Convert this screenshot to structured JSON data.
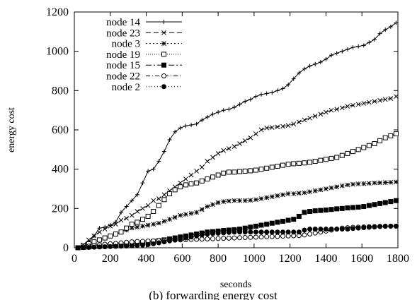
{
  "caption": "(b) forwarding energy cost",
  "chart_data": {
    "type": "line",
    "xlabel": "seconds",
    "ylabel": "energy cost",
    "xlim": [
      0,
      1800
    ],
    "ylim": [
      0,
      1200
    ],
    "xticks": [
      0,
      200,
      400,
      600,
      800,
      1000,
      1200,
      1400,
      1600,
      1800
    ],
    "yticks": [
      0,
      200,
      400,
      600,
      800,
      1000,
      1200
    ],
    "grid": false,
    "legend_position": "top-left",
    "series": [
      {
        "name": "node 14",
        "marker": "plus",
        "dash": "",
        "x": [
          20,
          50,
          80,
          110,
          140,
          170,
          200,
          230,
          260,
          290,
          320,
          350,
          380,
          410,
          440,
          470,
          500,
          530,
          560,
          590,
          620,
          650,
          680,
          710,
          740,
          770,
          800,
          830,
          860,
          890,
          920,
          950,
          980,
          1010,
          1040,
          1070,
          1100,
          1130,
          1160,
          1190,
          1220,
          1250,
          1280,
          1310,
          1340,
          1370,
          1400,
          1430,
          1460,
          1490,
          1520,
          1550,
          1580,
          1610,
          1640,
          1670,
          1700,
          1730,
          1760,
          1790
        ],
        "y": [
          0,
          10,
          30,
          60,
          100,
          105,
          115,
          130,
          180,
          210,
          240,
          270,
          330,
          390,
          400,
          440,
          490,
          550,
          590,
          610,
          620,
          625,
          630,
          650,
          665,
          680,
          690,
          700,
          705,
          715,
          730,
          745,
          755,
          770,
          780,
          785,
          790,
          800,
          810,
          830,
          860,
          890,
          910,
          925,
          935,
          945,
          960,
          980,
          990,
          1000,
          1010,
          1020,
          1025,
          1030,
          1045,
          1060,
          1090,
          1110,
          1125,
          1145
        ]
      },
      {
        "name": "node 23",
        "marker": "x",
        "dash": "7,4",
        "x": [
          20,
          50,
          80,
          110,
          140,
          170,
          200,
          230,
          260,
          290,
          320,
          350,
          380,
          410,
          440,
          470,
          500,
          530,
          560,
          590,
          620,
          650,
          680,
          710,
          740,
          770,
          800,
          830,
          860,
          890,
          920,
          950,
          980,
          1010,
          1040,
          1070,
          1100,
          1130,
          1160,
          1190,
          1220,
          1250,
          1280,
          1310,
          1340,
          1370,
          1400,
          1430,
          1460,
          1490,
          1520,
          1550,
          1580,
          1610,
          1640,
          1670,
          1700,
          1730,
          1760,
          1790
        ],
        "y": [
          0,
          15,
          40,
          60,
          80,
          95,
          110,
          120,
          140,
          150,
          165,
          185,
          200,
          215,
          240,
          250,
          270,
          290,
          310,
          330,
          350,
          370,
          390,
          410,
          440,
          460,
          480,
          495,
          505,
          515,
          530,
          545,
          560,
          580,
          600,
          610,
          612,
          615,
          618,
          622,
          630,
          640,
          650,
          660,
          670,
          680,
          690,
          700,
          705,
          712,
          720,
          725,
          730,
          735,
          740,
          745,
          750,
          755,
          760,
          770
        ]
      },
      {
        "name": "node 3",
        "marker": "star",
        "dash": "2,3",
        "x": [
          20,
          50,
          80,
          110,
          140,
          170,
          200,
          230,
          260,
          290,
          320,
          350,
          380,
          410,
          440,
          470,
          500,
          530,
          560,
          590,
          620,
          650,
          680,
          710,
          740,
          770,
          800,
          830,
          860,
          890,
          920,
          950,
          980,
          1010,
          1040,
          1070,
          1100,
          1130,
          1160,
          1190,
          1220,
          1250,
          1280,
          1310,
          1340,
          1370,
          1400,
          1430,
          1460,
          1490,
          1520,
          1550,
          1580,
          1610,
          1640,
          1670,
          1700,
          1730,
          1760,
          1790
        ],
        "y": [
          0,
          10,
          20,
          30,
          40,
          50,
          60,
          70,
          80,
          90,
          100,
          105,
          110,
          115,
          120,
          125,
          135,
          145,
          155,
          165,
          170,
          175,
          180,
          195,
          210,
          220,
          230,
          235,
          238,
          240,
          240,
          240,
          242,
          245,
          250,
          255,
          260,
          265,
          270,
          275,
          275,
          278,
          280,
          285,
          290,
          295,
          300,
          305,
          310,
          315,
          320,
          323,
          325,
          326,
          328,
          330,
          331,
          332,
          333,
          335
        ]
      },
      {
        "name": "node 19",
        "marker": "square",
        "dash": "1,2",
        "x": [
          20,
          50,
          80,
          110,
          140,
          170,
          200,
          230,
          260,
          290,
          320,
          350,
          380,
          410,
          440,
          470,
          500,
          530,
          560,
          590,
          620,
          650,
          680,
          710,
          740,
          770,
          800,
          830,
          860,
          890,
          920,
          950,
          980,
          1010,
          1040,
          1070,
          1100,
          1130,
          1160,
          1190,
          1220,
          1250,
          1280,
          1310,
          1340,
          1370,
          1400,
          1430,
          1460,
          1490,
          1520,
          1550,
          1580,
          1610,
          1640,
          1670,
          1700,
          1730,
          1760,
          1790
        ],
        "y": [
          0,
          10,
          20,
          30,
          40,
          50,
          60,
          70,
          80,
          100,
          120,
          130,
          145,
          160,
          185,
          215,
          245,
          275,
          295,
          310,
          320,
          325,
          330,
          340,
          350,
          360,
          370,
          380,
          385,
          385,
          388,
          390,
          392,
          395,
          400,
          405,
          410,
          415,
          420,
          425,
          428,
          430,
          432,
          435,
          440,
          445,
          450,
          455,
          460,
          470,
          480,
          490,
          500,
          510,
          520,
          530,
          545,
          560,
          570,
          580
        ]
      },
      {
        "name": "node 15",
        "marker": "filled-square",
        "dash": "8,3,2,3",
        "x": [
          20,
          50,
          80,
          110,
          140,
          170,
          200,
          230,
          260,
          290,
          320,
          350,
          380,
          410,
          440,
          470,
          500,
          530,
          560,
          590,
          620,
          650,
          680,
          710,
          740,
          770,
          800,
          830,
          860,
          890,
          920,
          950,
          980,
          1010,
          1040,
          1070,
          1100,
          1130,
          1160,
          1190,
          1220,
          1250,
          1280,
          1310,
          1340,
          1370,
          1400,
          1430,
          1460,
          1490,
          1520,
          1550,
          1580,
          1610,
          1640,
          1670,
          1700,
          1730,
          1760,
          1790
        ],
        "y": [
          0,
          2,
          4,
          6,
          8,
          10,
          12,
          14,
          16,
          18,
          20,
          22,
          25,
          28,
          32,
          36,
          40,
          45,
          50,
          55,
          60,
          65,
          70,
          75,
          80,
          82,
          85,
          88,
          90,
          92,
          95,
          100,
          105,
          110,
          115,
          120,
          125,
          130,
          135,
          140,
          145,
          160,
          180,
          185,
          188,
          190,
          192,
          195,
          198,
          200,
          203,
          205,
          207,
          210,
          215,
          220,
          225,
          230,
          235,
          240
        ]
      },
      {
        "name": "node 22",
        "marker": "circle",
        "dash": "6,3,1,3",
        "x": [
          20,
          50,
          80,
          110,
          140,
          170,
          200,
          230,
          260,
          290,
          320,
          350,
          380,
          410,
          440,
          470,
          500,
          530,
          560,
          590,
          620,
          650,
          680,
          710,
          740,
          770,
          800,
          830,
          860,
          890,
          920,
          950,
          980,
          1010,
          1040,
          1070,
          1100,
          1130,
          1160,
          1190,
          1220,
          1250,
          1280,
          1310,
          1340,
          1370,
          1400,
          1430,
          1460,
          1490,
          1520,
          1550,
          1580,
          1610,
          1640,
          1670,
          1700,
          1730,
          1760,
          1790
        ],
        "y": [
          0,
          5,
          8,
          12,
          15,
          18,
          20,
          22,
          25,
          28,
          30,
          32,
          33,
          34,
          35,
          36,
          37,
          38,
          39,
          40,
          41,
          42,
          43,
          44,
          45,
          46,
          47,
          48,
          49,
          50,
          51,
          52,
          53,
          54,
          55,
          56,
          57,
          58,
          59,
          60,
          61,
          62,
          65,
          70,
          75,
          80,
          85,
          90,
          95,
          100,
          102,
          104,
          105,
          106,
          107,
          108,
          109,
          110,
          110,
          110
        ]
      },
      {
        "name": "node 2",
        "marker": "filled-circle",
        "dash": "1,3",
        "x": [
          20,
          50,
          80,
          110,
          140,
          170,
          200,
          230,
          260,
          290,
          320,
          350,
          380,
          410,
          440,
          470,
          500,
          530,
          560,
          590,
          620,
          650,
          680,
          710,
          740,
          770,
          800,
          830,
          860,
          890,
          920,
          950,
          980,
          1010,
          1040,
          1070,
          1100,
          1130,
          1160,
          1190,
          1220,
          1250,
          1280,
          1310,
          1340,
          1370,
          1400,
          1430,
          1460,
          1490,
          1520,
          1550,
          1580,
          1610,
          1640,
          1670,
          1700,
          1730,
          1760,
          1790
        ],
        "y": [
          0,
          1,
          2,
          3,
          4,
          5,
          6,
          7,
          8,
          9,
          10,
          12,
          14,
          16,
          20,
          25,
          30,
          35,
          40,
          45,
          50,
          55,
          60,
          65,
          70,
          72,
          74,
          76,
          78,
          80,
          80,
          80,
          80,
          80,
          80,
          80,
          80,
          80,
          80,
          80,
          80,
          80,
          90,
          95,
          95,
          95,
          95,
          95,
          95,
          95,
          95,
          98,
          100,
          102,
          104,
          106,
          108,
          109,
          110,
          110
        ]
      }
    ]
  }
}
